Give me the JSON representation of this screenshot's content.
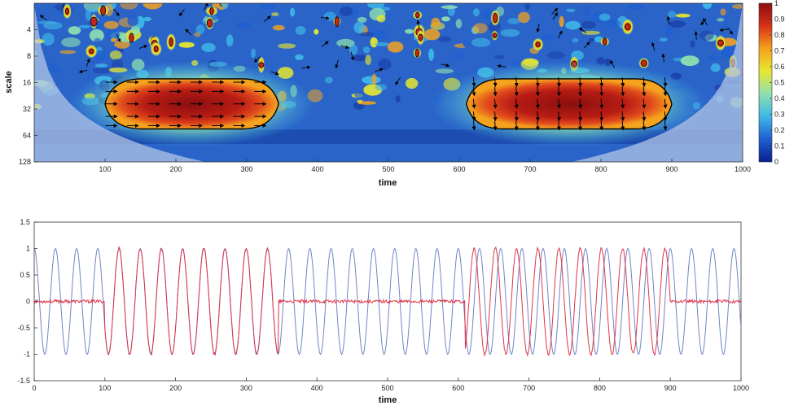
{
  "chart_data": [
    {
      "type": "heatmap",
      "title": "",
      "xlabel": "time",
      "ylabel": "scale",
      "xlim": [
        0,
        1000
      ],
      "ylim": [
        2,
        128
      ],
      "y_scale": "log2",
      "y_reversed": true,
      "x_ticks": [
        100,
        200,
        300,
        400,
        500,
        600,
        700,
        800,
        900,
        1000
      ],
      "y_ticks": [
        4,
        8,
        16,
        32,
        64,
        128
      ],
      "colorbar": {
        "ticks": [
          0,
          0.1,
          0.2,
          0.3,
          0.4,
          0.5,
          0.6,
          0.7,
          0.8,
          0.9,
          1
        ],
        "tick_labels": [
          "0",
          "0.1",
          "0.2",
          "0.3",
          "0.4",
          "0.5",
          "0.6",
          "0.7",
          "0.8",
          "0.9",
          "1"
        ],
        "colors": [
          "#0a1f8f",
          "#1f5fd1",
          "#3fb7e8",
          "#8ee0b0",
          "#e8e830",
          "#f5a21e",
          "#d83218",
          "#8a0f0f"
        ]
      },
      "regions": [
        {
          "name": "coherent-region-1",
          "x_start": 100,
          "x_end": 345,
          "scale": 28,
          "level": 0.9,
          "arrow_direction": "right"
        },
        {
          "name": "coherent-region-2",
          "x_start": 610,
          "x_end": 900,
          "scale": 28,
          "level": 0.9,
          "arrow_direction": "down"
        }
      ],
      "cone_of_influence": true
    },
    {
      "type": "line",
      "title": "",
      "xlabel": "time",
      "ylabel": "",
      "xlim": [
        0,
        1000
      ],
      "ylim": [
        -1.5,
        1.5
      ],
      "x_ticks": [
        0,
        100,
        200,
        300,
        400,
        500,
        600,
        700,
        800,
        900,
        1000
      ],
      "y_ticks": [
        -1.5,
        -1,
        -0.5,
        0,
        0.5,
        1,
        1.5
      ],
      "y_tick_labels": [
        "-1.5",
        "-1",
        "-0.5",
        "0",
        "0.5",
        "1",
        "1.5"
      ],
      "series": [
        {
          "color": "#6f86c6",
          "period": 30,
          "amplitude": 1,
          "segments": [
            [
              0,
              1000
            ]
          ]
        },
        {
          "color": "#e0344a",
          "period": 30,
          "amplitude": 1,
          "in_phase_segment": [
            100,
            345
          ],
          "shifted_segment": [
            610,
            900
          ],
          "noise_level": 0.03
        }
      ]
    }
  ]
}
